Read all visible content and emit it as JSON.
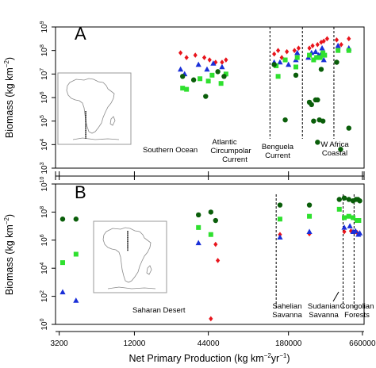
{
  "colors": {
    "mammals": "#e8141c",
    "birds": "#1a2fd8",
    "reptiles": "#2fe02f",
    "fish": "#0a5e0a"
  },
  "shared_xlabel_main": "Net Primary Production (kg km",
  "shared_xlabel_sup1": "−2",
  "shared_xlabel_mid": "yr",
  "shared_xlabel_sup2": "−1",
  "shared_xlabel_end": ")",
  "chart_data": [
    {
      "type": "scatter",
      "panel_label": "A",
      "ylabel_main": "Biomass (kg km",
      "ylabel_sup": "−2",
      "ylabel_end": ")",
      "y_scale": "log",
      "ylim_log10": [
        3,
        9
      ],
      "y_tick_labels": [
        {
          "base": "10",
          "exp": "3"
        },
        {
          "base": "10",
          "exp": "4"
        },
        {
          "base": "10",
          "exp": "5"
        },
        {
          "base": "10",
          "exp": "6"
        },
        {
          "base": "10",
          "exp": "7"
        },
        {
          "base": "10",
          "exp": "8"
        },
        {
          "base": "10",
          "exp": "9"
        }
      ],
      "regions": [
        "Southern Ocean",
        "Atlantic Circumpolar Current",
        "Benguela Current",
        "W Africa Coastal"
      ],
      "boundaries_npp": [
        130000,
        230000,
        400000
      ],
      "series": [
        {
          "marker": "diamond",
          "color": "mammals",
          "points": [
            [
              27000,
              7.9
            ],
            [
              30000,
              7.7
            ],
            [
              35000,
              7.8
            ],
            [
              41000,
              7.7
            ],
            [
              45000,
              7.6
            ],
            [
              50000,
              7.5
            ],
            [
              56000,
              7.5
            ],
            [
              60000,
              7.6
            ],
            [
              140000,
              7.85
            ],
            [
              150000,
              8.0
            ],
            [
              160000,
              7.7
            ],
            [
              175000,
              7.95
            ],
            [
              200000,
              8.0
            ],
            [
              215000,
              8.1
            ],
            [
              260000,
              8.1
            ],
            [
              275000,
              8.2
            ],
            [
              300000,
              8.25
            ],
            [
              320000,
              8.35
            ],
            [
              335000,
              8.4
            ],
            [
              355000,
              8.5
            ],
            [
              420000,
              8.45
            ],
            [
              455000,
              8.25
            ],
            [
              520000,
              8.5
            ]
          ]
        },
        {
          "marker": "triangle",
          "color": "birds",
          "points": [
            [
              27000,
              7.2
            ],
            [
              29000,
              7.0
            ],
            [
              37000,
              7.4
            ],
            [
              43000,
              7.2
            ],
            [
              48000,
              7.45
            ],
            [
              56000,
              7.3
            ],
            [
              140000,
              7.5
            ],
            [
              155000,
              7.5
            ],
            [
              180000,
              7.4
            ],
            [
              205000,
              7.6
            ],
            [
              210000,
              7.9
            ],
            [
              255000,
              7.7
            ],
            [
              270000,
              7.9
            ],
            [
              290000,
              7.95
            ],
            [
              305000,
              7.8
            ],
            [
              315000,
              7.8
            ],
            [
              325000,
              8.1
            ],
            [
              335000,
              7.6
            ],
            [
              430000,
              8.2
            ],
            [
              520000,
              8.1
            ]
          ]
        },
        {
          "marker": "square",
          "color": "reptiles",
          "points": [
            [
              28000,
              6.4
            ],
            [
              30000,
              6.35
            ],
            [
              38000,
              6.8
            ],
            [
              44000,
              6.7
            ],
            [
              47000,
              6.95
            ],
            [
              55000,
              6.6
            ],
            [
              60000,
              7.0
            ],
            [
              145000,
              7.35
            ],
            [
              150000,
              6.9
            ],
            [
              170000,
              7.6
            ],
            [
              205000,
              7.3
            ],
            [
              210000,
              7.7
            ],
            [
              260000,
              7.8
            ],
            [
              280000,
              7.6
            ],
            [
              295000,
              7.7
            ],
            [
              315000,
              7.7
            ],
            [
              330000,
              7.9
            ],
            [
              340000,
              7.8
            ],
            [
              430000,
              8.0
            ],
            [
              520000,
              8.0
            ]
          ]
        },
        {
          "marker": "circle",
          "color": "fish",
          "points": [
            [
              28000,
              6.9
            ],
            [
              34000,
              6.75
            ],
            [
              42000,
              6.05
            ],
            [
              52000,
              7.1
            ],
            [
              58000,
              6.9
            ],
            [
              140000,
              7.4
            ],
            [
              170000,
              5.05
            ],
            [
              205000,
              6.95
            ],
            [
              260000,
              5.8
            ],
            [
              270000,
              5.7
            ],
            [
              280000,
              5.0
            ],
            [
              290000,
              5.9
            ],
            [
              300000,
              5.9
            ],
            [
              310000,
              5.05
            ],
            [
              330000,
              5.0
            ],
            [
              320000,
              7.2
            ],
            [
              420000,
              7.5
            ],
            [
              300000,
              4.1
            ],
            [
              450000,
              3.8
            ],
            [
              520000,
              4.7
            ]
          ]
        }
      ]
    },
    {
      "type": "scatter",
      "panel_label": "B",
      "ylabel_main": "Biomass (kg km",
      "ylabel_sup": "−2",
      "ylabel_end": ")",
      "y_scale": "log",
      "ylim_log10": [
        0,
        10
      ],
      "y_tick_labels": [
        {
          "base": "10",
          "exp": "0"
        },
        {
          "base": "10",
          "exp": "2"
        },
        {
          "base": "10",
          "exp": "4"
        },
        {
          "base": "10",
          "exp": "6"
        },
        {
          "base": "10",
          "exp": "8"
        },
        {
          "base": "10",
          "exp": "10"
        }
      ],
      "regions": [
        "Saharan Desert",
        "Sahelian Savanna",
        "Sudanian Savanna",
        "Congolian Forests"
      ],
      "boundaries_npp": [
        145000,
        470000,
        570000
      ],
      "series": [
        {
          "marker": "diamond",
          "color": "mammals",
          "points": [
            [
              46000,
              0.4
            ],
            [
              52000,
              4.55
            ],
            [
              50000,
              5.7
            ],
            [
              155000,
              6.4
            ],
            [
              260000,
              6.45
            ],
            [
              480000,
              6.6
            ],
            [
              540000,
              6.65
            ],
            [
              580000,
              6.6
            ],
            [
              600000,
              6.55
            ]
          ]
        },
        {
          "marker": "triangle",
          "color": "birds",
          "points": [
            [
              3400,
              2.3
            ],
            [
              4300,
              1.7
            ],
            [
              37000,
              5.8
            ],
            [
              155000,
              6.2
            ],
            [
              260000,
              6.6
            ],
            [
              480000,
              6.9
            ],
            [
              530000,
              7.0
            ],
            [
              560000,
              6.6
            ],
            [
              585000,
              6.65
            ],
            [
              615000,
              6.4
            ],
            [
              630000,
              6.5
            ]
          ]
        },
        {
          "marker": "square",
          "color": "reptiles",
          "points": [
            [
              3400,
              4.4
            ],
            [
              4300,
              5.0
            ],
            [
              37000,
              6.9
            ],
            [
              46000,
              6.4
            ],
            [
              155000,
              7.5
            ],
            [
              260000,
              7.7
            ],
            [
              440000,
              8.2
            ],
            [
              480000,
              7.6
            ],
            [
              520000,
              7.7
            ],
            [
              560000,
              7.6
            ],
            [
              600000,
              7.4
            ],
            [
              620000,
              7.4
            ]
          ]
        },
        {
          "marker": "circle",
          "color": "fish",
          "points": [
            [
              3400,
              7.5
            ],
            [
              4300,
              7.5
            ],
            [
              37000,
              7.8
            ],
            [
              46000,
              8.0
            ],
            [
              50000,
              7.4
            ],
            [
              155000,
              8.5
            ],
            [
              260000,
              8.5
            ],
            [
              440000,
              8.9
            ],
            [
              480000,
              9.0
            ],
            [
              520000,
              8.9
            ],
            [
              560000,
              8.8
            ],
            [
              590000,
              8.9
            ],
            [
              610000,
              8.9
            ],
            [
              630000,
              8.8
            ]
          ]
        }
      ]
    }
  ],
  "x_axis": {
    "scale": "log",
    "xlim": [
      3000,
      680000
    ],
    "tick_values": [
      3200,
      12000,
      44000,
      180000,
      660000
    ],
    "tick_labels": [
      "3200",
      "12000",
      "44000",
      "180000",
      "660000"
    ]
  }
}
